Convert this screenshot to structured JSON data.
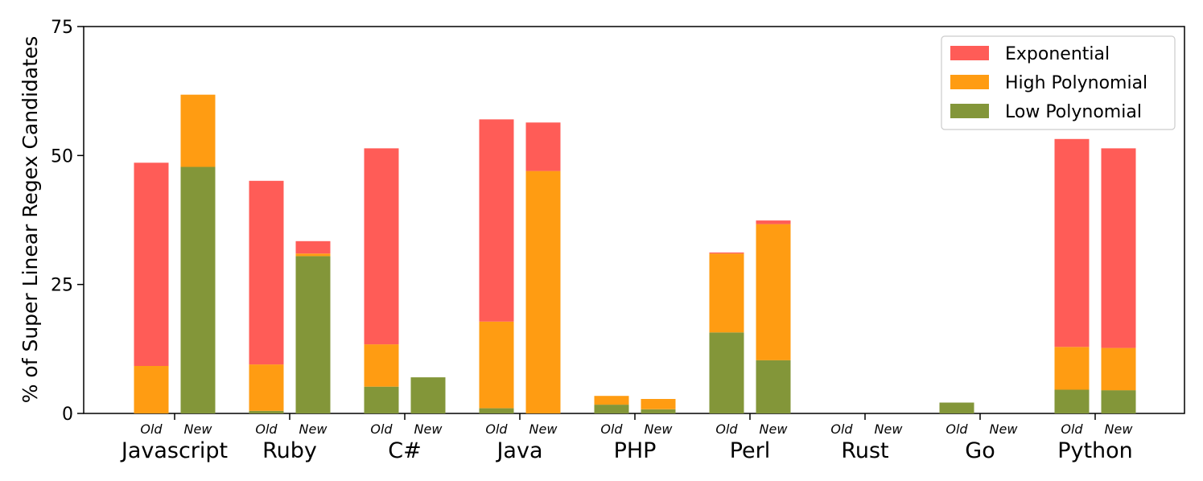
{
  "chart_data": {
    "type": "bar",
    "stacked": true,
    "ylabel": "% of Super Linear Regex Candidates",
    "ylim": [
      0,
      75
    ],
    "yticks": [
      0,
      25,
      50,
      75
    ],
    "categories": [
      "Javascript",
      "Ruby",
      "C#",
      "Java",
      "PHP",
      "Perl",
      "Rust",
      "Go",
      "Python"
    ],
    "sub_labels": [
      "Old",
      "New"
    ],
    "legend_position": "top-right",
    "colors": {
      "Exponential": "#ff5c57",
      "High Polynomial": "#ff9c12",
      "Low Polynomial": "#839639"
    },
    "series": [
      {
        "name": "Low Polynomial",
        "old": [
          0,
          0.5,
          5.2,
          1.0,
          1.7,
          15.7,
          0,
          2.1,
          4.6
        ],
        "new": [
          47.8,
          30.5,
          7.0,
          0,
          0.8,
          10.3,
          0,
          0,
          4.5
        ]
      },
      {
        "name": "High Polynomial",
        "old": [
          9.2,
          9.0,
          8.2,
          16.8,
          1.7,
          15.3,
          0,
          0,
          8.3
        ],
        "new": [
          14.0,
          0.5,
          0,
          47.0,
          2.0,
          26.4,
          0,
          0,
          8.2
        ]
      },
      {
        "name": "Exponential",
        "old": [
          39.4,
          35.6,
          38.0,
          39.2,
          0,
          0.2,
          0,
          0,
          40.3
        ],
        "new": [
          0,
          2.4,
          0,
          9.4,
          0,
          0.7,
          0,
          0,
          38.7
        ]
      }
    ],
    "legend": [
      "Exponential",
      "High Polynomial",
      "Low Polynomial"
    ]
  }
}
